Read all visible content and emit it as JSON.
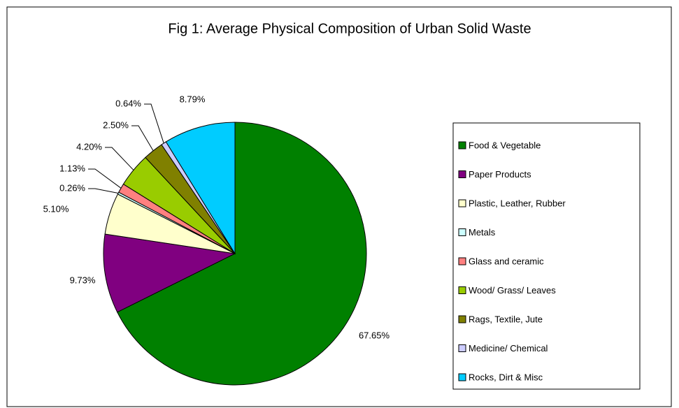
{
  "chart_data": {
    "type": "pie",
    "title": "Fig 1: Average Physical Composition of Urban Solid Waste",
    "categories": [
      "Food & Vegetable",
      "Paper Products",
      "Plastic, Leather, Rubber",
      "Metals",
      "Glass and ceramic",
      "Wood/ Grass/ Leaves",
      "Rags, Textile, Jute",
      "Medicine/ Chemical",
      "Rocks, Dirt & Misc"
    ],
    "values": [
      67.65,
      9.73,
      5.1,
      0.26,
      1.13,
      4.2,
      2.5,
      0.64,
      8.79
    ],
    "value_labels": [
      "67.65%",
      "9.73%",
      "5.10%",
      "0.26%",
      "1.13%",
      "4.20%",
      "2.50%",
      "0.64%",
      "8.79%"
    ],
    "colors": [
      "#008000",
      "#800080",
      "#ffffcc",
      "#ccffff",
      "#ff8080",
      "#99cc00",
      "#808000",
      "#ccccff",
      "#00ccff"
    ],
    "legend": "right"
  }
}
